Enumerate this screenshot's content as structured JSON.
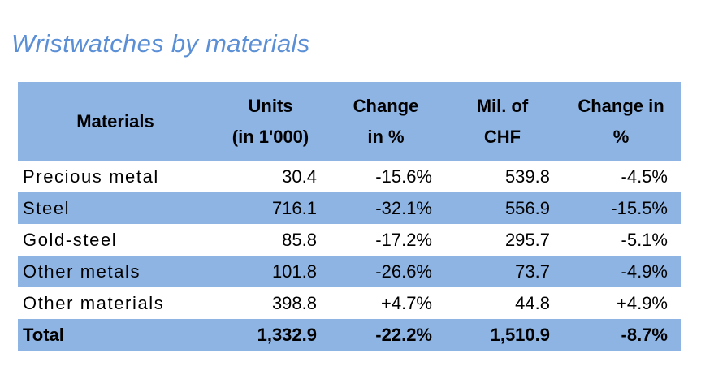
{
  "title": "Wristwatches by materials",
  "table": {
    "headers": [
      {
        "line1": "Materials",
        "line2": ""
      },
      {
        "line1": "Units",
        "line2": "(in 1'000)"
      },
      {
        "line1": "Change",
        "line2": "in %"
      },
      {
        "line1": "Mil. of",
        "line2": "CHF"
      },
      {
        "line1": "Change in",
        "line2": "%"
      }
    ],
    "rows": [
      {
        "material": "Precious metal",
        "units": "30.4",
        "units_change": "-15.6%",
        "chf": "539.8",
        "chf_change": "-4.5%"
      },
      {
        "material": "Steel",
        "units": "716.1",
        "units_change": "-32.1%",
        "chf": "556.9",
        "chf_change": "-15.5%"
      },
      {
        "material": "Gold-steel",
        "units": "85.8",
        "units_change": "-17.2%",
        "chf": "295.7",
        "chf_change": "-5.1%"
      },
      {
        "material": "Other metals",
        "units": "101.8",
        "units_change": "-26.6%",
        "chf": "73.7",
        "chf_change": "-4.9%"
      },
      {
        "material": "Other materials",
        "units": "398.8",
        "units_change": "+4.7%",
        "chf": "44.8",
        "chf_change": "+4.9%"
      },
      {
        "material": "Total",
        "units": "1,332.9",
        "units_change": "-22.2%",
        "chf": "1,510.9",
        "chf_change": "-8.7%"
      }
    ]
  },
  "colors": {
    "title": "#5b8fd6",
    "header_band": "#8eb4e3",
    "row_band": "#8eb4e3"
  }
}
